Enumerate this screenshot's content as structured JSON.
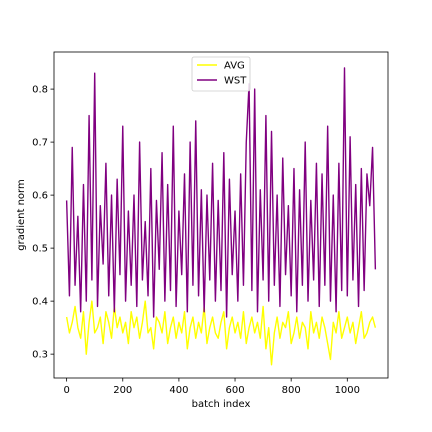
{
  "chart_data": {
    "type": "line",
    "xlabel": "batch index",
    "ylabel": "gradient norm",
    "xlim": [
      -45,
      1145
    ],
    "ylim": [
      0.255,
      0.87
    ],
    "x_ticks": [
      0,
      200,
      400,
      600,
      800,
      1000
    ],
    "y_ticks": [
      0.3,
      0.4,
      0.5,
      0.6,
      0.7,
      0.8
    ],
    "x_tick_labels": [
      "0",
      "200",
      "400",
      "600",
      "800",
      "1000"
    ],
    "y_tick_labels": [
      "0.3",
      "0.4",
      "0.5",
      "0.6",
      "0.7",
      "0.8"
    ],
    "grid": false,
    "legend_position": "top-center",
    "x_step": 10,
    "series": [
      {
        "name": "AVG",
        "color": "#ffff00",
        "values": [
          0.37,
          0.34,
          0.36,
          0.39,
          0.35,
          0.33,
          0.38,
          0.3,
          0.36,
          0.4,
          0.34,
          0.35,
          0.37,
          0.32,
          0.38,
          0.36,
          0.33,
          0.39,
          0.35,
          0.37,
          0.34,
          0.36,
          0.32,
          0.38,
          0.35,
          0.37,
          0.33,
          0.36,
          0.4,
          0.34,
          0.35,
          0.31,
          0.37,
          0.36,
          0.34,
          0.38,
          0.32,
          0.35,
          0.37,
          0.33,
          0.36,
          0.34,
          0.38,
          0.31,
          0.35,
          0.37,
          0.33,
          0.36,
          0.34,
          0.39,
          0.32,
          0.35,
          0.37,
          0.34,
          0.33,
          0.36,
          0.38,
          0.31,
          0.35,
          0.37,
          0.34,
          0.36,
          0.33,
          0.38,
          0.32,
          0.35,
          0.37,
          0.34,
          0.36,
          0.33,
          0.39,
          0.31,
          0.35,
          0.28,
          0.34,
          0.37,
          0.33,
          0.36,
          0.35,
          0.38,
          0.32,
          0.34,
          0.37,
          0.33,
          0.36,
          0.35,
          0.31,
          0.38,
          0.34,
          0.36,
          0.33,
          0.37,
          0.35,
          0.32,
          0.29,
          0.36,
          0.34,
          0.38,
          0.33,
          0.35,
          0.37,
          0.34,
          0.36,
          0.32,
          0.35,
          0.38,
          0.33,
          0.34,
          0.36,
          0.37,
          0.35
        ]
      },
      {
        "name": "WST",
        "color": "#800080",
        "values": [
          0.59,
          0.41,
          0.69,
          0.43,
          0.56,
          0.38,
          0.62,
          0.4,
          0.75,
          0.44,
          0.83,
          0.39,
          0.58,
          0.47,
          0.66,
          0.41,
          0.6,
          0.38,
          0.63,
          0.45,
          0.73,
          0.4,
          0.57,
          0.43,
          0.6,
          0.39,
          0.7,
          0.44,
          0.55,
          0.41,
          0.65,
          0.37,
          0.59,
          0.46,
          0.68,
          0.4,
          0.62,
          0.42,
          0.73,
          0.39,
          0.57,
          0.45,
          0.64,
          0.38,
          0.7,
          0.43,
          0.74,
          0.41,
          0.61,
          0.38,
          0.6,
          0.44,
          0.66,
          0.4,
          0.59,
          0.42,
          0.68,
          0.37,
          0.63,
          0.45,
          0.57,
          0.4,
          0.64,
          0.43,
          0.7,
          0.81,
          0.42,
          0.8,
          0.38,
          0.61,
          0.44,
          0.75,
          0.4,
          0.72,
          0.43,
          0.6,
          0.39,
          0.67,
          0.45,
          0.58,
          0.41,
          0.65,
          0.38,
          0.61,
          0.43,
          0.7,
          0.4,
          0.59,
          0.44,
          0.66,
          0.39,
          0.64,
          0.43,
          0.73,
          0.4,
          0.6,
          0.38,
          0.66,
          0.42,
          0.84,
          0.41,
          0.71,
          0.44,
          0.62,
          0.39,
          0.65,
          0.42,
          0.64,
          0.58,
          0.69,
          0.46
        ]
      }
    ]
  }
}
